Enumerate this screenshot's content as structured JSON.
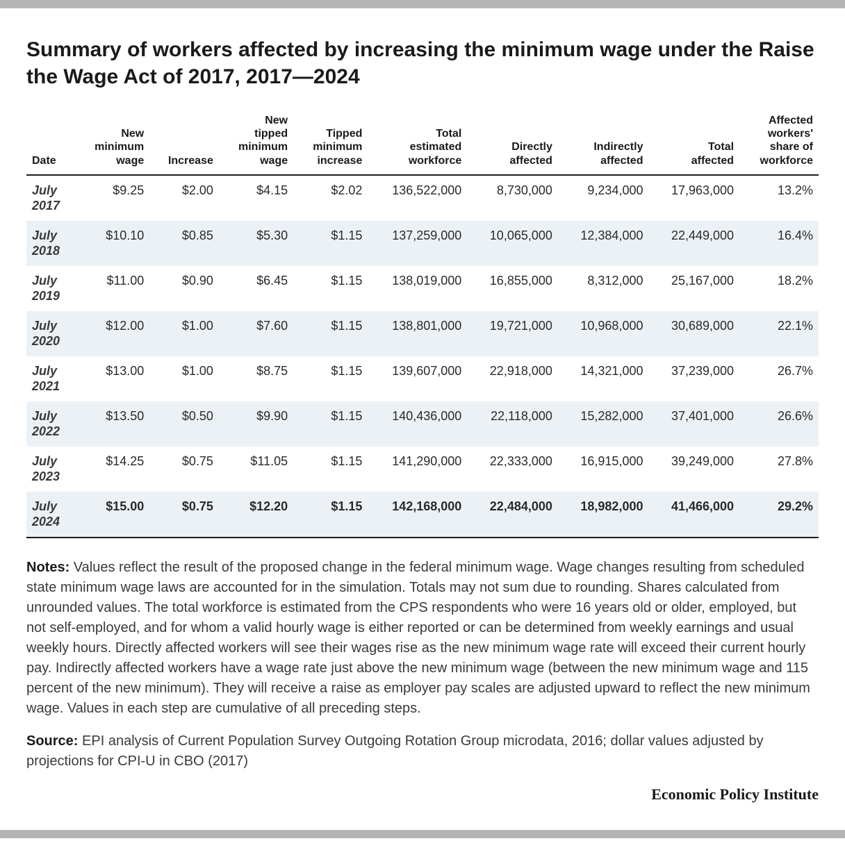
{
  "title": "Summary of workers affected by increasing the minimum wage under the Raise the Wage Act of 2017, 2017—2024",
  "table": {
    "columns": [
      "Date",
      "New minimum wage",
      "Increase",
      "New tipped minimum wage",
      "Tipped minimum increase",
      "Total estimated workforce",
      "Directly affected",
      "Indirectly affected",
      "Total affected",
      "Affected workers' share of workforce"
    ],
    "rows": [
      {
        "date_l1": "July",
        "date_l2": "2017",
        "c": [
          "$9.25",
          "$2.00",
          "$4.15",
          "$2.02",
          "136,522,000",
          "8,730,000",
          "9,234,000",
          "17,963,000",
          "13.2%"
        ],
        "bold": false
      },
      {
        "date_l1": "July",
        "date_l2": "2018",
        "c": [
          "$10.10",
          "$0.85",
          "$5.30",
          "$1.15",
          "137,259,000",
          "10,065,000",
          "12,384,000",
          "22,449,000",
          "16.4%"
        ],
        "bold": false
      },
      {
        "date_l1": "July",
        "date_l2": "2019",
        "c": [
          "$11.00",
          "$0.90",
          "$6.45",
          "$1.15",
          "138,019,000",
          "16,855,000",
          "8,312,000",
          "25,167,000",
          "18.2%"
        ],
        "bold": false
      },
      {
        "date_l1": "July",
        "date_l2": "2020",
        "c": [
          "$12.00",
          "$1.00",
          "$7.60",
          "$1.15",
          "138,801,000",
          "19,721,000",
          "10,968,000",
          "30,689,000",
          "22.1%"
        ],
        "bold": false
      },
      {
        "date_l1": "July",
        "date_l2": "2021",
        "c": [
          "$13.00",
          "$1.00",
          "$8.75",
          "$1.15",
          "139,607,000",
          "22,918,000",
          "14,321,000",
          "37,239,000",
          "26.7%"
        ],
        "bold": false
      },
      {
        "date_l1": "July",
        "date_l2": "2022",
        "c": [
          "$13.50",
          "$0.50",
          "$9.90",
          "$1.15",
          "140,436,000",
          "22,118,000",
          "15,282,000",
          "37,401,000",
          "26.6%"
        ],
        "bold": false
      },
      {
        "date_l1": "July",
        "date_l2": "2023",
        "c": [
          "$14.25",
          "$0.75",
          "$11.05",
          "$1.15",
          "141,290,000",
          "22,333,000",
          "16,915,000",
          "39,249,000",
          "27.8%"
        ],
        "bold": false
      },
      {
        "date_l1": "July",
        "date_l2": "2024",
        "c": [
          "$15.00",
          "$0.75",
          "$12.20",
          "$1.15",
          "142,168,000",
          "22,484,000",
          "18,982,000",
          "41,466,000",
          "29.2%"
        ],
        "bold": true
      }
    ],
    "row_stripe_even": "#ecf1f5",
    "row_stripe_odd": "#ffffff",
    "border_color": "#1a1a1a"
  },
  "notes_label": "Notes:",
  "notes_text": " Values reflect the result of the proposed change in the federal minimum wage. Wage changes resulting from scheduled state minimum wage laws are accounted for in the simulation. Totals may not sum due to rounding. Shares calculated from unrounded values. The total workforce  is estimated from the CPS respondents who were 16 years old or older, employed, but not self-employed, and for whom a valid hourly wage is either reported or can be determined from weekly earnings and usual weekly hours. Directly affected workers will see their wages rise as the new minimum wage rate will exceed their current hourly pay. Indirectly affected workers  have a wage rate just above the new minimum wage (between the new minimum wage and 115 percent of the new minimum).  They will receive a raise as employer pay scales are adjusted upward to reflect the new minimum wage. Values in each step are cumulative of all preceding steps.",
  "source_label": "Source:",
  "source_text": " EPI analysis of Current Population Survey Outgoing Rotation Group microdata, 2016; dollar values adjusted by projections for CPI-U in CBO (2017)",
  "brand": "Economic Policy Institute",
  "colors": {
    "top_bar": "#b5b5b5",
    "text": "#1a1a1a",
    "body_text": "#3a3a3a"
  }
}
